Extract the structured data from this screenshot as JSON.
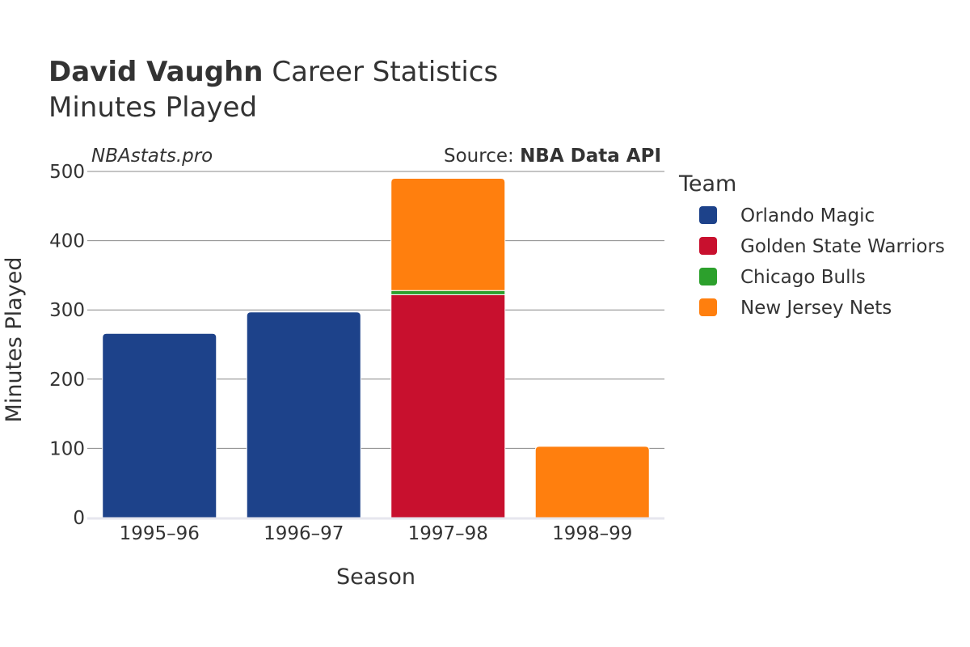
{
  "header": {
    "player_name": "David Vaughn",
    "title_rest": "Career Statistics",
    "subtitle": "Minutes Played"
  },
  "watermark": "NBAstats.pro",
  "source": {
    "prefix": "Source: ",
    "name": "NBA Data API"
  },
  "colors": {
    "text": "#333333",
    "grid": "#888888",
    "axis_line": "#e6e6ee"
  },
  "chart_data": {
    "type": "bar",
    "stacked": true,
    "title": "David Vaughn Career Statistics",
    "subtitle": "Minutes Played",
    "xlabel": "Season",
    "ylabel": "Minutes Played",
    "categories": [
      "1995–96",
      "1996–97",
      "1997–98",
      "1998–99"
    ],
    "ylim": [
      0,
      500
    ],
    "yticks": [
      0,
      100,
      200,
      300,
      400,
      500
    ],
    "grid": true,
    "legend_title": "Team",
    "legend_position": "right",
    "series": [
      {
        "name": "Orlando Magic",
        "color": "#1d428a",
        "values": [
          266,
          297,
          0,
          0
        ]
      },
      {
        "name": "Golden State Warriors",
        "color": "#c8102e",
        "values": [
          0,
          0,
          322,
          0
        ]
      },
      {
        "name": "Chicago Bulls",
        "color": "#2ca02c",
        "values": [
          0,
          0,
          6,
          0
        ]
      },
      {
        "name": "New Jersey Nets",
        "color": "#ff7f0e",
        "values": [
          0,
          0,
          162,
          103
        ]
      }
    ]
  }
}
